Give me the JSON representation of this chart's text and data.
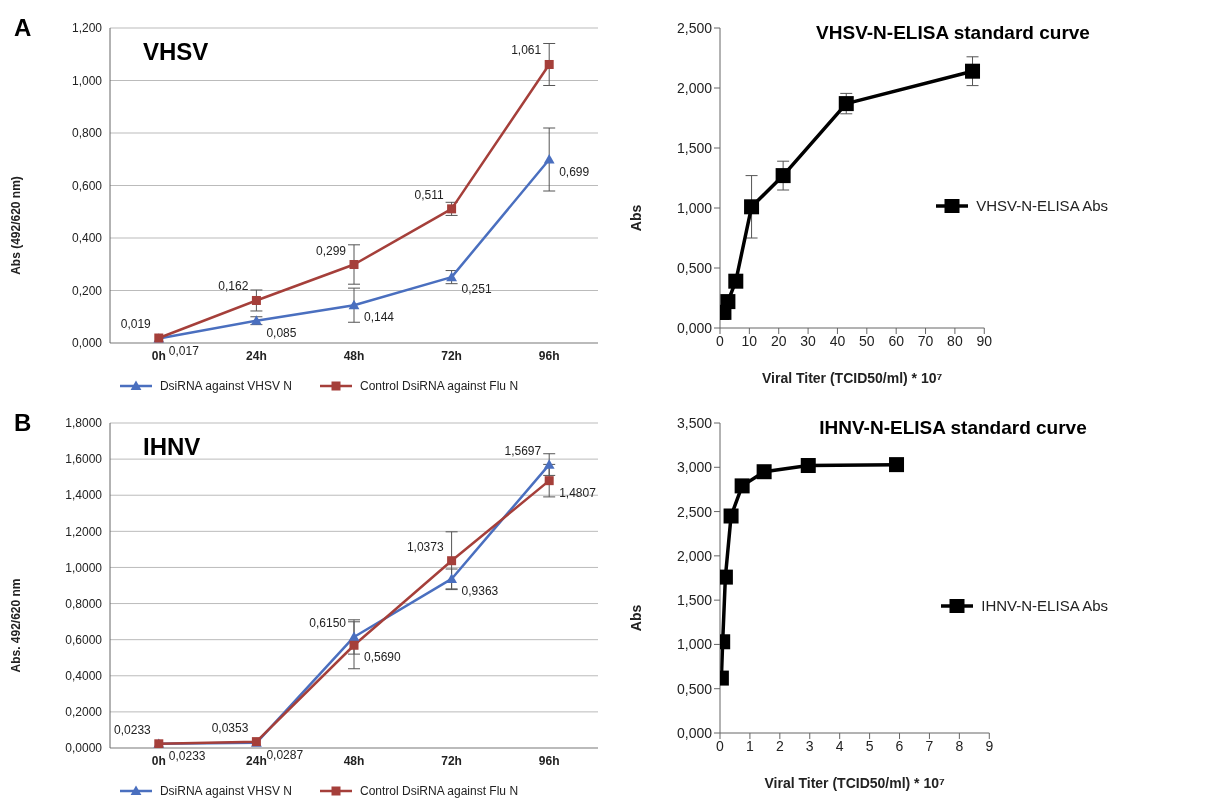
{
  "chart_data": [
    {
      "type": "line",
      "title": "VHSV",
      "ylabel": "Abs (492/620 nm)",
      "annotations": [
        "A"
      ],
      "categories": [
        "0h",
        "24h",
        "48h",
        "72h",
        "96h"
      ],
      "series": [
        {
          "name": "DsiRNA against VHSV N",
          "color": "#4a6fbf",
          "marker": "triangle",
          "values": [
            0.017,
            0.085,
            0.144,
            0.251,
            0.699
          ],
          "errors": [
            null,
            0.015,
            0.065,
            0.025,
            0.12
          ],
          "value_labels": [
            "0,017",
            "0,085",
            "0,144",
            "0,251",
            "0,699"
          ]
        },
        {
          "name": "Control DsiRNA against Flu N",
          "color": "#a53f3a",
          "marker": "square",
          "values": [
            0.019,
            0.162,
            0.299,
            0.511,
            1.061
          ],
          "errors": [
            null,
            0.04,
            0.075,
            0.025,
            0.08
          ],
          "value_labels": [
            "0,019",
            "0,162",
            "0,299",
            "0,511",
            "1,061"
          ]
        }
      ],
      "ylim": [
        0,
        1.2
      ],
      "yticks": [
        {
          "value": 0,
          "label": "0,000"
        },
        {
          "value": 0.2,
          "label": "0,200"
        },
        {
          "value": 0.4,
          "label": "0,400"
        },
        {
          "value": 0.6,
          "label": "0,600"
        },
        {
          "value": 0.8,
          "label": "0,800"
        },
        {
          "value": 1.0,
          "label": "1,000"
        },
        {
          "value": 1.2,
          "label": "1,200"
        }
      ],
      "grid": "y",
      "legend": "bottom"
    },
    {
      "type": "line",
      "title": "VHSV-N-ELISA standard curve",
      "xlabel": "Viral Titer (TCID50/ml) * 10⁷",
      "ylabel": "Abs",
      "x": [
        0.67,
        1.34,
        2.69,
        5.38,
        10.75,
        21.5,
        43,
        86
      ],
      "series": [
        {
          "name": "VHSV-N-ELISA Abs",
          "color": "#000000",
          "marker": "square",
          "values": [
            0.13,
            0.13,
            0.22,
            0.39,
            1.01,
            1.27,
            1.87,
            2.14
          ],
          "errors": [
            null,
            null,
            null,
            null,
            0.26,
            0.12,
            0.085,
            0.12
          ]
        }
      ],
      "xlim": [
        0,
        90
      ],
      "xticks": [
        0,
        10,
        20,
        30,
        40,
        50,
        60,
        70,
        80,
        90
      ],
      "ylim": [
        0,
        2.5
      ],
      "yticks": [
        {
          "value": 0,
          "label": "0,000"
        },
        {
          "value": 0.5,
          "label": "0,500"
        },
        {
          "value": 1.0,
          "label": "1,000"
        },
        {
          "value": 1.5,
          "label": "1,500"
        },
        {
          "value": 2.0,
          "label": "2,000"
        },
        {
          "value": 2.5,
          "label": "2,500"
        }
      ],
      "legend": "right"
    },
    {
      "type": "line",
      "title": "IHNV",
      "ylabel": "Abs. 492/620 nm",
      "annotations": [
        "B"
      ],
      "categories": [
        "0h",
        "24h",
        "48h",
        "72h",
        "96h"
      ],
      "series": [
        {
          "name": "DsiRNA against VHSV N",
          "color": "#4a6fbf",
          "marker": "triangle",
          "values": [
            0.0233,
            0.0287,
            0.615,
            0.9363,
            1.5697
          ],
          "errors": [
            null,
            null,
            0.095,
            0.055,
            0.06
          ],
          "value_labels": [
            "0,0233",
            "0,0287",
            "0,6150",
            "0,9363",
            "1,5697"
          ]
        },
        {
          "name": "Control DsiRNA against Flu N",
          "color": "#a53f3a",
          "marker": "square",
          "values": [
            0.0233,
            0.0353,
            0.569,
            1.0373,
            1.4807
          ],
          "errors": [
            null,
            null,
            0.13,
            0.16,
            0.09
          ],
          "value_labels": [
            "0,0233",
            "0,0353",
            "0,5690",
            "1,0373",
            "1,4807"
          ]
        }
      ],
      "ylim": [
        0,
        1.8
      ],
      "yticks": [
        {
          "value": 0,
          "label": "0,0000"
        },
        {
          "value": 0.2,
          "label": "0,2000"
        },
        {
          "value": 0.4,
          "label": "0,4000"
        },
        {
          "value": 0.6,
          "label": "0,6000"
        },
        {
          "value": 0.8,
          "label": "0,8000"
        },
        {
          "value": 1.0,
          "label": "1,0000"
        },
        {
          "value": 1.2,
          "label": "1,2000"
        },
        {
          "value": 1.4,
          "label": "1,4000"
        },
        {
          "value": 1.6,
          "label": "1,6000"
        },
        {
          "value": 1.8,
          "label": "1,8000"
        }
      ],
      "grid": "y",
      "legend": "bottom"
    },
    {
      "type": "line",
      "title": "IHNV-N-ELISA standard curve",
      "xlabel": "Viral Titer (TCID50/ml) * 10⁷",
      "ylabel": "Abs",
      "x": [
        0.046,
        0.09,
        0.18,
        0.37,
        0.74,
        1.475,
        2.95,
        5.9
      ],
      "series": [
        {
          "name": "IHNV-N-ELISA Abs",
          "color": "#000000",
          "marker": "square",
          "values": [
            0.62,
            1.03,
            1.76,
            2.45,
            2.79,
            2.95,
            3.02,
            3.03
          ]
        }
      ],
      "xlim": [
        0,
        9
      ],
      "xticks": [
        0,
        1,
        2,
        3,
        4,
        5,
        6,
        7,
        8,
        9
      ],
      "ylim": [
        0,
        3.5
      ],
      "yticks": [
        {
          "value": 0,
          "label": "0,000"
        },
        {
          "value": 0.5,
          "label": "0,500"
        },
        {
          "value": 1.0,
          "label": "1,000"
        },
        {
          "value": 1.5,
          "label": "1,500"
        },
        {
          "value": 2.0,
          "label": "2,000"
        },
        {
          "value": 2.5,
          "label": "2,500"
        },
        {
          "value": 3.0,
          "label": "3,000"
        },
        {
          "value": 3.5,
          "label": "3,500"
        }
      ],
      "legend": "right"
    }
  ]
}
